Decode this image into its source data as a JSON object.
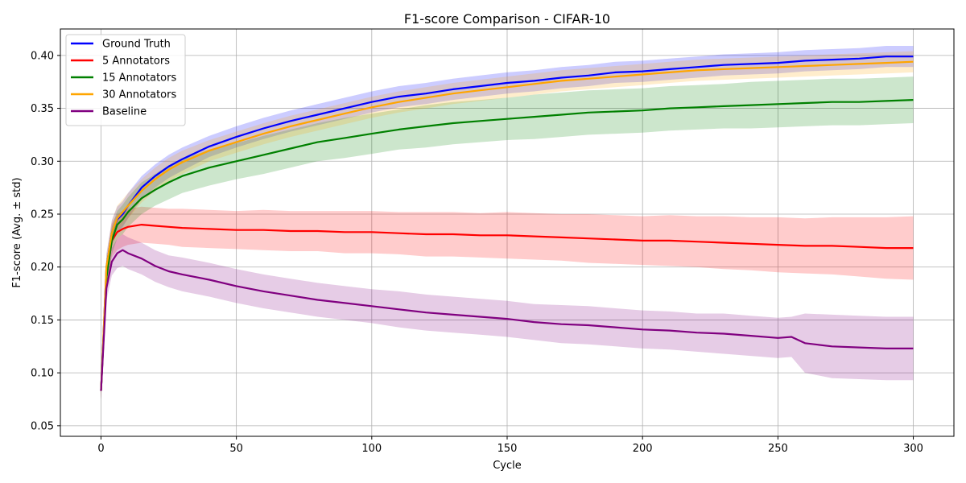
{
  "chart_data": {
    "type": "line",
    "title": "F1-score Comparison - CIFAR-10",
    "xlabel": "Cycle",
    "ylabel": "F1-score (Avg. ± std)",
    "xlim": [
      -15,
      315
    ],
    "ylim": [
      0.04,
      0.425
    ],
    "xticks": [
      0,
      50,
      100,
      150,
      200,
      250,
      300
    ],
    "yticks": [
      0.05,
      0.1,
      0.15,
      0.2,
      0.25,
      0.3,
      0.35,
      0.4
    ],
    "ytick_labels": [
      "0.05",
      "0.10",
      "0.15",
      "0.20",
      "0.25",
      "0.30",
      "0.35",
      "0.40"
    ],
    "grid": true,
    "legend_position": "top-left",
    "series": [
      {
        "name": "Ground Truth",
        "color": "#0000ff",
        "x": [
          0,
          2,
          4,
          6,
          8,
          10,
          15,
          20,
          25,
          30,
          40,
          50,
          60,
          70,
          80,
          90,
          100,
          110,
          120,
          130,
          140,
          150,
          160,
          170,
          180,
          190,
          200,
          210,
          220,
          230,
          240,
          250,
          260,
          270,
          280,
          290,
          300
        ],
        "mean": [
          0.083,
          0.2,
          0.232,
          0.245,
          0.25,
          0.258,
          0.275,
          0.286,
          0.295,
          0.302,
          0.314,
          0.323,
          0.331,
          0.338,
          0.344,
          0.35,
          0.356,
          0.361,
          0.364,
          0.368,
          0.371,
          0.374,
          0.376,
          0.379,
          0.381,
          0.384,
          0.385,
          0.387,
          0.389,
          0.391,
          0.392,
          0.393,
          0.395,
          0.396,
          0.397,
          0.399,
          0.399
        ],
        "std": [
          0.008,
          0.012,
          0.012,
          0.012,
          0.012,
          0.012,
          0.011,
          0.011,
          0.011,
          0.011,
          0.01,
          0.01,
          0.01,
          0.01,
          0.01,
          0.01,
          0.01,
          0.01,
          0.01,
          0.01,
          0.01,
          0.01,
          0.01,
          0.01,
          0.01,
          0.01,
          0.01,
          0.01,
          0.01,
          0.01,
          0.01,
          0.01,
          0.01,
          0.01,
          0.01,
          0.01,
          0.01
        ]
      },
      {
        "name": "5 Annotators",
        "color": "#ff0000",
        "x": [
          0,
          2,
          4,
          6,
          8,
          10,
          15,
          20,
          25,
          30,
          40,
          50,
          60,
          70,
          80,
          90,
          100,
          110,
          120,
          130,
          140,
          150,
          160,
          170,
          180,
          190,
          200,
          210,
          220,
          230,
          240,
          250,
          260,
          270,
          280,
          290,
          300
        ],
        "mean": [
          0.083,
          0.19,
          0.225,
          0.233,
          0.236,
          0.238,
          0.24,
          0.239,
          0.238,
          0.237,
          0.236,
          0.235,
          0.235,
          0.234,
          0.234,
          0.233,
          0.233,
          0.232,
          0.231,
          0.231,
          0.23,
          0.23,
          0.229,
          0.228,
          0.227,
          0.226,
          0.225,
          0.225,
          0.224,
          0.223,
          0.222,
          0.221,
          0.22,
          0.22,
          0.219,
          0.218,
          0.218
        ],
        "std": [
          0.008,
          0.015,
          0.016,
          0.017,
          0.017,
          0.017,
          0.017,
          0.017,
          0.017,
          0.018,
          0.018,
          0.018,
          0.019,
          0.019,
          0.019,
          0.02,
          0.02,
          0.02,
          0.021,
          0.021,
          0.021,
          0.022,
          0.022,
          0.022,
          0.023,
          0.023,
          0.023,
          0.024,
          0.024,
          0.025,
          0.025,
          0.026,
          0.026,
          0.027,
          0.028,
          0.029,
          0.03
        ]
      },
      {
        "name": "15 Annotators",
        "color": "#008000",
        "x": [
          0,
          2,
          4,
          6,
          8,
          10,
          15,
          20,
          25,
          30,
          40,
          50,
          60,
          70,
          80,
          90,
          100,
          110,
          120,
          130,
          140,
          150,
          160,
          170,
          180,
          190,
          200,
          210,
          220,
          230,
          240,
          250,
          260,
          270,
          280,
          290,
          300
        ],
        "mean": [
          0.083,
          0.19,
          0.225,
          0.24,
          0.245,
          0.252,
          0.265,
          0.273,
          0.28,
          0.286,
          0.294,
          0.3,
          0.306,
          0.312,
          0.318,
          0.322,
          0.326,
          0.33,
          0.333,
          0.336,
          0.338,
          0.34,
          0.342,
          0.344,
          0.346,
          0.347,
          0.348,
          0.35,
          0.351,
          0.352,
          0.353,
          0.354,
          0.355,
          0.356,
          0.356,
          0.357,
          0.358
        ],
        "std": [
          0.008,
          0.012,
          0.013,
          0.013,
          0.014,
          0.014,
          0.015,
          0.015,
          0.016,
          0.016,
          0.017,
          0.017,
          0.018,
          0.018,
          0.018,
          0.019,
          0.019,
          0.019,
          0.02,
          0.02,
          0.02,
          0.02,
          0.021,
          0.021,
          0.021,
          0.021,
          0.021,
          0.021,
          0.021,
          0.021,
          0.022,
          0.022,
          0.022,
          0.022,
          0.022,
          0.022,
          0.022
        ]
      },
      {
        "name": "30 Annotators",
        "color": "#ffa500",
        "x": [
          0,
          2,
          4,
          6,
          8,
          10,
          15,
          20,
          25,
          30,
          40,
          50,
          60,
          70,
          80,
          90,
          100,
          110,
          120,
          130,
          140,
          150,
          160,
          170,
          180,
          190,
          200,
          210,
          220,
          230,
          240,
          250,
          260,
          270,
          280,
          290,
          300
        ],
        "mean": [
          0.083,
          0.2,
          0.232,
          0.246,
          0.252,
          0.258,
          0.272,
          0.283,
          0.292,
          0.299,
          0.31,
          0.318,
          0.326,
          0.333,
          0.339,
          0.345,
          0.351,
          0.356,
          0.36,
          0.364,
          0.367,
          0.37,
          0.373,
          0.376,
          0.378,
          0.38,
          0.382,
          0.384,
          0.386,
          0.387,
          0.388,
          0.389,
          0.39,
          0.391,
          0.392,
          0.393,
          0.394
        ],
        "std": [
          0.008,
          0.012,
          0.012,
          0.012,
          0.012,
          0.012,
          0.011,
          0.011,
          0.011,
          0.011,
          0.01,
          0.01,
          0.01,
          0.01,
          0.01,
          0.01,
          0.01,
          0.01,
          0.01,
          0.01,
          0.01,
          0.01,
          0.01,
          0.01,
          0.01,
          0.01,
          0.01,
          0.01,
          0.01,
          0.01,
          0.01,
          0.01,
          0.01,
          0.01,
          0.01,
          0.01,
          0.01
        ]
      },
      {
        "name": "Baseline",
        "color": "#800080",
        "x": [
          0,
          2,
          4,
          6,
          8,
          10,
          15,
          20,
          25,
          30,
          40,
          50,
          60,
          70,
          80,
          90,
          100,
          110,
          120,
          130,
          140,
          150,
          160,
          170,
          180,
          190,
          200,
          210,
          220,
          230,
          240,
          250,
          255,
          260,
          270,
          280,
          290,
          300
        ],
        "mean": [
          0.083,
          0.18,
          0.205,
          0.213,
          0.216,
          0.213,
          0.208,
          0.201,
          0.196,
          0.193,
          0.188,
          0.182,
          0.177,
          0.173,
          0.169,
          0.166,
          0.163,
          0.16,
          0.157,
          0.155,
          0.153,
          0.151,
          0.148,
          0.146,
          0.145,
          0.143,
          0.141,
          0.14,
          0.138,
          0.137,
          0.135,
          0.133,
          0.134,
          0.128,
          0.125,
          0.124,
          0.123,
          0.123
        ],
        "std": [
          0.008,
          0.012,
          0.013,
          0.014,
          0.015,
          0.015,
          0.015,
          0.015,
          0.015,
          0.016,
          0.016,
          0.016,
          0.016,
          0.016,
          0.016,
          0.016,
          0.016,
          0.017,
          0.017,
          0.017,
          0.017,
          0.017,
          0.017,
          0.018,
          0.018,
          0.018,
          0.018,
          0.018,
          0.018,
          0.019,
          0.019,
          0.019,
          0.019,
          0.028,
          0.03,
          0.03,
          0.03,
          0.03
        ]
      }
    ]
  }
}
